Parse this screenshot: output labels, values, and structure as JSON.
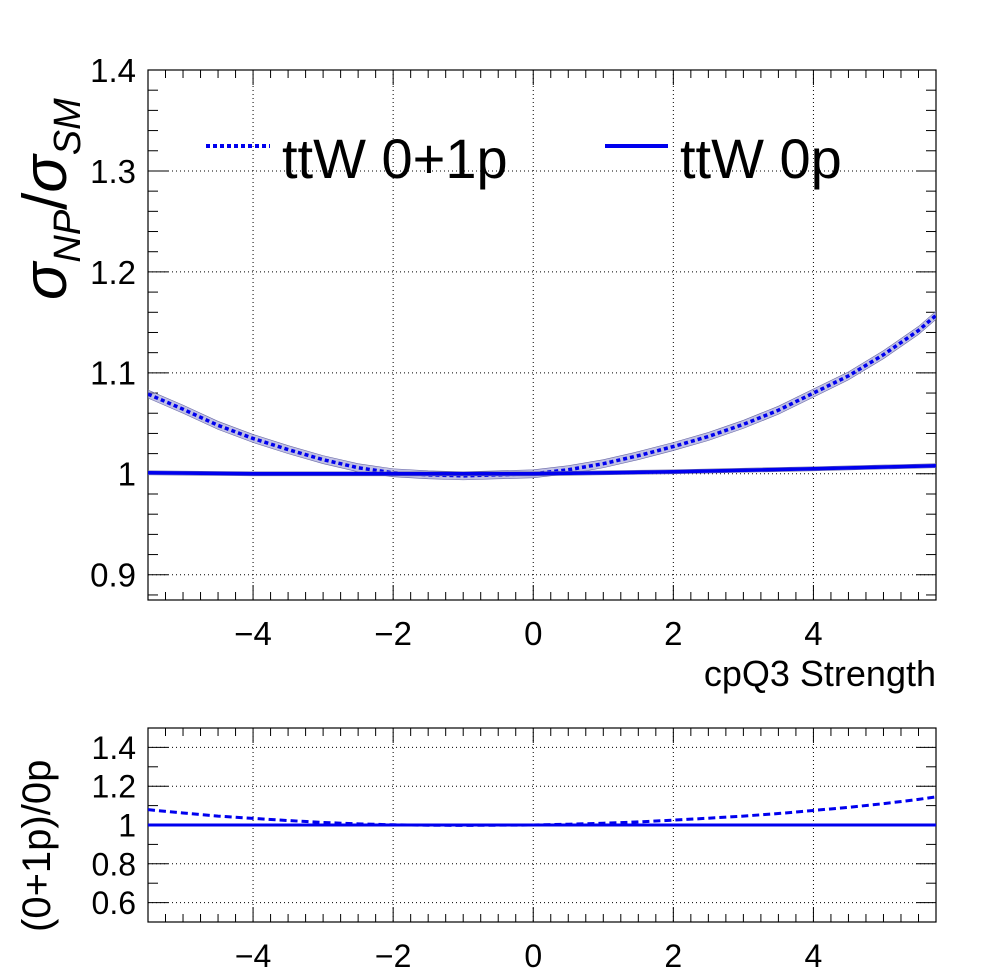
{
  "chart_data": [
    {
      "type": "line",
      "panel": "main",
      "xlabel": "cpQ3 Strength",
      "ylabel_base": "σ",
      "ylabel_num_sub": "NP",
      "ylabel_sep": "/",
      "ylabel_den_sub": "SM",
      "xlim": [
        -5.5,
        5.75
      ],
      "ylim": [
        0.875,
        1.4
      ],
      "x_ticks": [
        -4,
        -2,
        0,
        2,
        4
      ],
      "x_tick_labels": [
        "−4",
        "−2",
        "0",
        "2",
        "4"
      ],
      "y_ticks": [
        0.9,
        1.0,
        1.1,
        1.2,
        1.3,
        1.4
      ],
      "y_tick_labels": [
        "0.9",
        "1",
        "1.1",
        "1.2",
        "1.3",
        "1.4"
      ],
      "grid": true,
      "legend_placement": "top",
      "series": [
        {
          "name": "ttW 0+1p",
          "style": "dotted",
          "color": "#0000ee",
          "band": 0.004,
          "x": [
            -5.5,
            -5.0,
            -4.5,
            -4.0,
            -3.5,
            -3.0,
            -2.5,
            -2.0,
            -1.5,
            -1.0,
            -0.5,
            0.0,
            0.5,
            1.0,
            1.5,
            2.0,
            2.5,
            3.0,
            3.5,
            4.0,
            4.5,
            5.0,
            5.5,
            5.75
          ],
          "y": [
            1.079,
            1.064,
            1.048,
            1.035,
            1.024,
            1.014,
            1.006,
            1.001,
            0.999,
            0.998,
            0.999,
            1.0,
            1.004,
            1.01,
            1.018,
            1.027,
            1.037,
            1.049,
            1.063,
            1.08,
            1.097,
            1.118,
            1.142,
            1.157
          ]
        },
        {
          "name": "ttW 0p",
          "style": "solid",
          "color": "#0000ee",
          "band": 0.002,
          "x": [
            -5.5,
            -4.0,
            -2.0,
            0.0,
            2.0,
            4.0,
            5.75
          ],
          "y": [
            1.001,
            1.0,
            1.0,
            1.0,
            1.002,
            1.005,
            1.008
          ]
        }
      ]
    },
    {
      "type": "line",
      "panel": "ratio",
      "ylabel": "(0+1p)/0p",
      "xlim": [
        -5.5,
        5.75
      ],
      "ylim": [
        0.5,
        1.5
      ],
      "x_ticks": [
        -4,
        -2,
        0,
        2,
        4
      ],
      "x_tick_labels": [
        "−4",
        "−2",
        "0",
        "2",
        "4"
      ],
      "y_ticks": [
        0.6,
        0.8,
        1.0,
        1.2,
        1.4
      ],
      "y_tick_labels": [
        "0.6",
        "0.8",
        "1",
        "1.2",
        "1.4"
      ],
      "grid": true,
      "series": [
        {
          "style": "dashed",
          "color": "#0000ee",
          "x": [
            -5.5,
            -5.0,
            -4.5,
            -4.0,
            -3.5,
            -3.0,
            -2.5,
            -2.0,
            -1.5,
            -1.0,
            -0.5,
            0.0,
            0.5,
            1.0,
            1.5,
            2.0,
            2.5,
            3.0,
            3.5,
            4.0,
            4.5,
            5.0,
            5.5,
            5.75
          ],
          "y": [
            1.079,
            1.062,
            1.046,
            1.034,
            1.023,
            1.013,
            1.006,
            1.001,
            0.999,
            0.998,
            0.999,
            1.0,
            1.004,
            1.009,
            1.016,
            1.025,
            1.035,
            1.046,
            1.059,
            1.075,
            1.091,
            1.11,
            1.132,
            1.145
          ]
        },
        {
          "style": "solid",
          "color": "#0000ee",
          "x": [
            -5.5,
            5.75
          ],
          "y": [
            1.0,
            1.0
          ]
        }
      ]
    }
  ]
}
